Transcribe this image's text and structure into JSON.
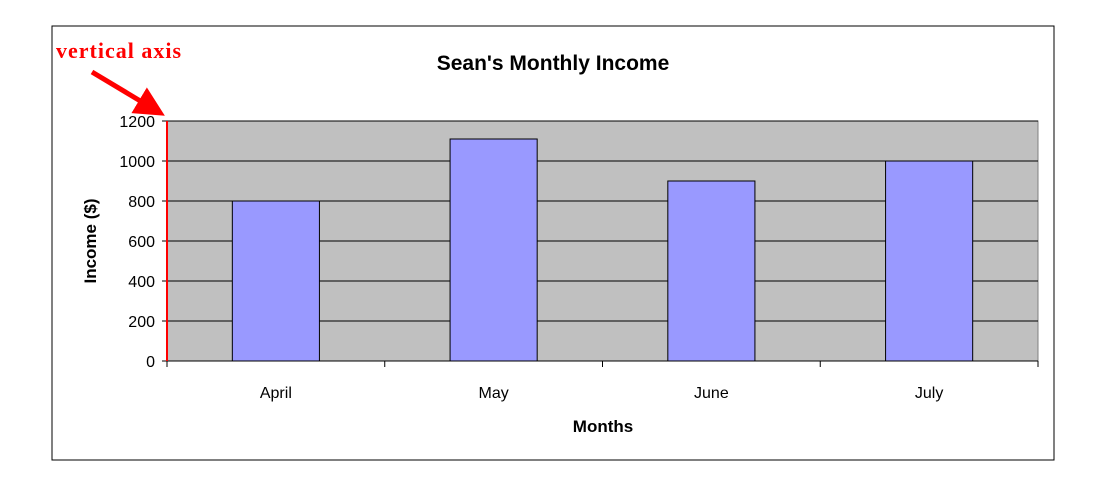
{
  "chart_data": {
    "type": "bar",
    "title": "Sean's Monthly Income",
    "xlabel": "Months",
    "ylabel": "Income ($)",
    "categories": [
      "April",
      "May",
      "June",
      "July"
    ],
    "values": [
      800,
      1110,
      900,
      1000
    ],
    "ylim": [
      0,
      1200
    ],
    "yticks": [
      0,
      200,
      400,
      600,
      800,
      1000,
      1200
    ],
    "grid": true,
    "legend": "none",
    "annotation": {
      "text": "vertical axis",
      "target": "y-axis",
      "color": "#ff0000"
    },
    "colors": {
      "bar_fill": "#9999ff",
      "plot_background": "#c0c0c0",
      "axis_highlight": "#ff0000"
    }
  }
}
